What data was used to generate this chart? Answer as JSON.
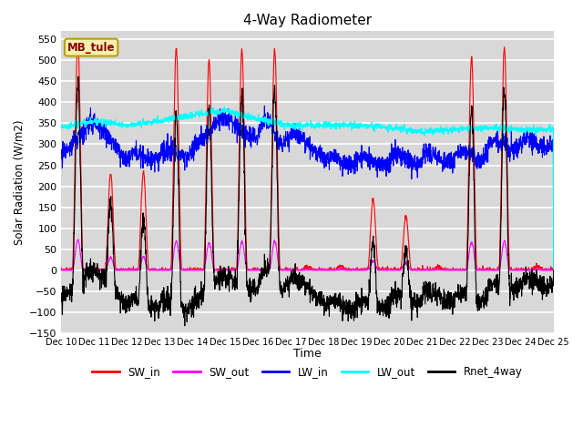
{
  "title": "4-Way Radiometer",
  "xlabel": "Time",
  "ylabel": "Solar Radiation (W/m2)",
  "ylim": [
    -150,
    570
  ],
  "yticks": [
    -150,
    -100,
    -50,
    0,
    50,
    100,
    150,
    200,
    250,
    300,
    350,
    400,
    450,
    500,
    550
  ],
  "num_days": 15,
  "pts_per_day": 144,
  "station_label": "MB_tule",
  "bg_color": "#d8d8d8",
  "grid_color": "white",
  "legend_entries": [
    "SW_in",
    "SW_out",
    "LW_in",
    "LW_out",
    "Rnet_4way"
  ],
  "line_colors": [
    "red",
    "magenta",
    "blue",
    "cyan",
    "black"
  ],
  "sw_in_peaks": [
    550,
    230,
    235,
    530,
    500,
    525,
    525,
    10,
    10,
    170,
    130,
    10,
    508,
    530,
    10
  ],
  "lw_in_base": [
    270,
    265,
    270,
    280,
    290,
    310,
    330,
    265,
    260,
    260,
    265,
    268,
    275,
    300,
    300
  ],
  "lw_out_base": [
    340,
    355,
    345,
    355,
    370,
    380,
    360,
    345,
    345,
    345,
    340,
    330,
    335,
    340,
    335
  ],
  "seed": 7
}
